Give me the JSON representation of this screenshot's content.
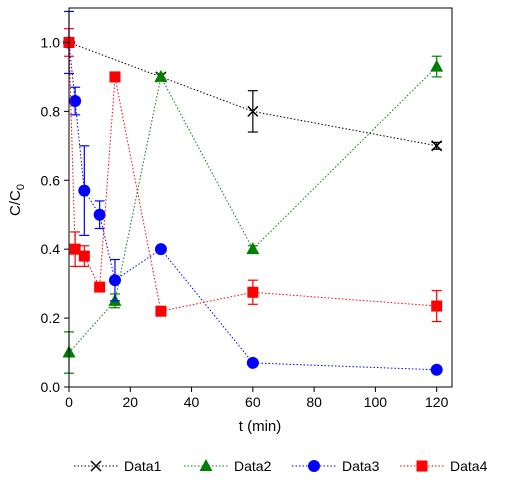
{
  "chart_data": {
    "type": "scatter",
    "xlabel": "t (min)",
    "ylabel_main": "C/C",
    "ylabel_sub": "0",
    "xlim": [
      0,
      125
    ],
    "ylim": [
      0,
      1.1
    ],
    "xticks": [
      0,
      20,
      40,
      60,
      80,
      100,
      120
    ],
    "yticks": [
      0.0,
      0.2,
      0.4,
      0.6,
      0.8,
      1.0
    ],
    "grid": false,
    "legend_position": "bottom",
    "series": [
      {
        "name": "Data1",
        "color": "#000000",
        "marker": "x",
        "points": [
          {
            "x": 0,
            "y": 1.0,
            "err": 0
          },
          {
            "x": 30,
            "y": 0.9,
            "err": 0
          },
          {
            "x": 60,
            "y": 0.8,
            "err": 0.06
          },
          {
            "x": 120,
            "y": 0.7,
            "err": 0.01
          }
        ]
      },
      {
        "name": "Data2",
        "color": "#008000",
        "marker": "triangle",
        "points": [
          {
            "x": 0,
            "y": 0.1,
            "err": 0.06
          },
          {
            "x": 15,
            "y": 0.25,
            "err": 0.02
          },
          {
            "x": 30,
            "y": 0.9,
            "err": 0.01
          },
          {
            "x": 60,
            "y": 0.4,
            "err": 0.01
          },
          {
            "x": 120,
            "y": 0.93,
            "err": 0.03
          }
        ]
      },
      {
        "name": "Data3",
        "color": "#0000ff",
        "marker": "circle",
        "points": [
          {
            "x": 0,
            "y": 1.0,
            "err": 0.09
          },
          {
            "x": 2,
            "y": 0.83,
            "err": 0.04
          },
          {
            "x": 5,
            "y": 0.57,
            "err": 0.13
          },
          {
            "x": 10,
            "y": 0.5,
            "err": 0.04
          },
          {
            "x": 15,
            "y": 0.31,
            "err": 0.06
          },
          {
            "x": 30,
            "y": 0.4,
            "err": 0
          },
          {
            "x": 60,
            "y": 0.07,
            "err": 0
          },
          {
            "x": 120,
            "y": 0.05,
            "err": 0
          }
        ]
      },
      {
        "name": "Data4",
        "color": "#ff0000",
        "marker": "square",
        "points": [
          {
            "x": 0,
            "y": 1.0,
            "err": 0.04
          },
          {
            "x": 2,
            "y": 0.4,
            "err": 0.05
          },
          {
            "x": 5,
            "y": 0.38,
            "err": 0.03
          },
          {
            "x": 10,
            "y": 0.29,
            "err": 0
          },
          {
            "x": 15,
            "y": 0.9,
            "err": 0
          },
          {
            "x": 30,
            "y": 0.22,
            "err": 0
          },
          {
            "x": 60,
            "y": 0.275,
            "err": 0.035
          },
          {
            "x": 120,
            "y": 0.235,
            "err": 0.045
          }
        ]
      }
    ]
  }
}
